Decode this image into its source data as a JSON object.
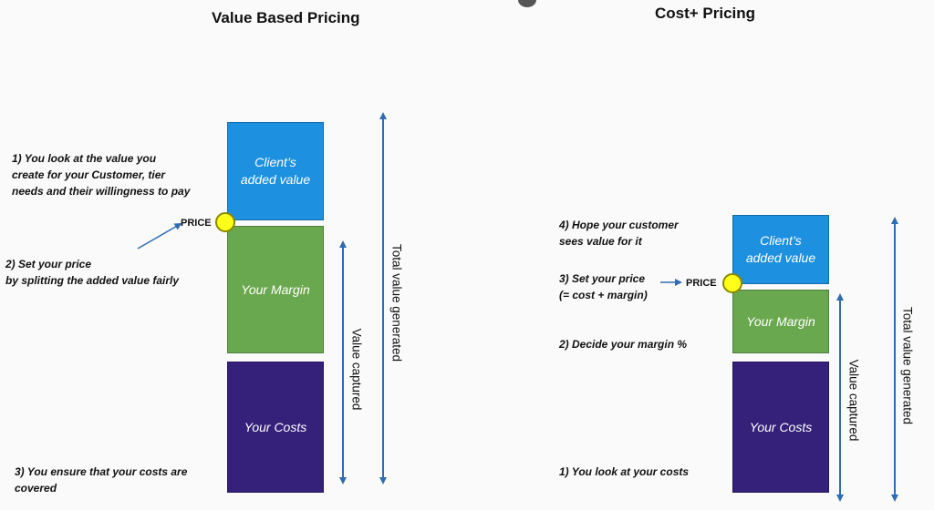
{
  "left": {
    "title": "Value Based Pricing",
    "box_client": "Client’s\nadded value",
    "box_margin": "Your Margin",
    "box_costs": "Your Costs",
    "price_label": "PRICE",
    "note1": [
      "1) You look at the value you",
      "create for your Customer, tier",
      "needs and their willingness to pay"
    ],
    "note2": [
      "2) Set your price",
      "by splitting the added value fairly"
    ],
    "note3": [
      "3) You ensure that your costs are",
      "covered"
    ],
    "value_captured": "Value captured",
    "total_value": "Total value generated"
  },
  "right": {
    "title": "Cost+ Pricing",
    "box_client": "Client’s\nadded value",
    "box_margin": "Your Margin",
    "box_costs": "Your Costs",
    "price_label": "PRICE",
    "note4": [
      "4) Hope your customer",
      "sees value for it"
    ],
    "note3": [
      "3) Set your price",
      "(= cost + margin)"
    ],
    "note2": [
      "2) Decide your margin %"
    ],
    "note1": [
      "1) You look at your costs"
    ],
    "value_captured": "Value captured",
    "total_value": "Total value generated"
  },
  "colors": {
    "client": "#1e90e0",
    "margin": "#6aa84f",
    "costs": "#35207a",
    "arrow": "#2e6db4",
    "price_dot": "#ffff1a"
  }
}
